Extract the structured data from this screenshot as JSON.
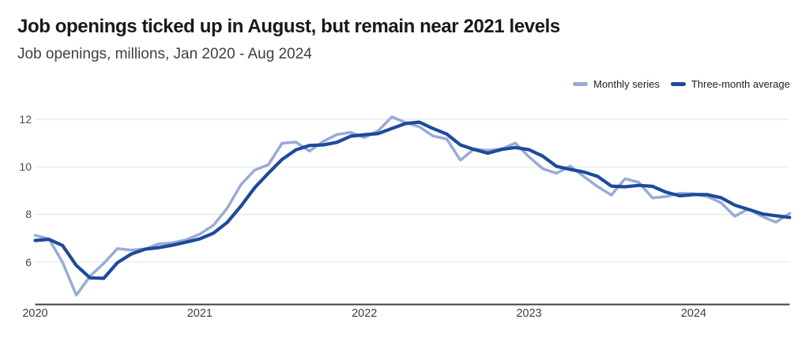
{
  "header": {
    "title": "Job openings ticked up in August, but remain near 2021 levels",
    "subtitle": "Job openings, millions, Jan 2020 - Aug 2024"
  },
  "legend": {
    "items": [
      {
        "label": "Monthly series",
        "color": "#97abd5"
      },
      {
        "label": "Three-month average",
        "color": "#1d4a9c"
      }
    ]
  },
  "chart_data": {
    "type": "line",
    "title": "Job openings ticked up in August, but remain near 2021 levels",
    "subtitle": "Job openings, millions, Jan 2020 - Aug 2024",
    "x_unit": "month",
    "x_range": "Jan 2020 - Aug 2024",
    "x_tick_labels": [
      "2020",
      "2021",
      "2022",
      "2023",
      "2024"
    ],
    "y_ticks": [
      6,
      8,
      10,
      12
    ],
    "ylim": [
      4.2,
      12.6
    ],
    "grid": "horizontal",
    "legend_position": "top-right",
    "series": [
      {
        "name": "Monthly series",
        "color": "#97abd5",
        "values": [
          7.12,
          6.97,
          5.98,
          4.6,
          5.4,
          5.94,
          6.56,
          6.5,
          6.54,
          6.76,
          6.8,
          6.93,
          7.17,
          7.54,
          8.26,
          9.25,
          9.86,
          10.09,
          10.99,
          11.04,
          10.66,
          11.07,
          11.36,
          11.45,
          11.23,
          11.51,
          12.1,
          11.86,
          11.68,
          11.3,
          11.17,
          10.28,
          10.75,
          10.69,
          10.75,
          11.0,
          10.42,
          9.92,
          9.73,
          10.03,
          9.59,
          9.17,
          8.81,
          9.5,
          9.35,
          8.69,
          8.75,
          8.89,
          8.86,
          8.75,
          8.49,
          7.92,
          8.23,
          7.91,
          7.67,
          8.04
        ]
      },
      {
        "name": "Three-month average",
        "color": "#1d4a9c",
        "values": [
          6.9,
          6.95,
          6.69,
          5.85,
          5.33,
          5.31,
          5.97,
          6.33,
          6.53,
          6.6,
          6.7,
          6.83,
          6.97,
          7.21,
          7.66,
          8.35,
          9.12,
          9.73,
          10.31,
          10.71,
          10.9,
          10.92,
          11.03,
          11.29,
          11.35,
          11.4,
          11.61,
          11.82,
          11.88,
          11.61,
          11.38,
          10.92,
          10.73,
          10.57,
          10.73,
          10.81,
          10.72,
          10.45,
          10.02,
          9.89,
          9.78,
          9.6,
          9.19,
          9.16,
          9.22,
          9.18,
          8.93,
          8.78,
          8.83,
          8.83,
          8.7,
          8.39,
          8.21,
          8.02,
          7.94,
          7.87
        ]
      }
    ]
  },
  "colors": {
    "gridline": "#e2e2e2",
    "axis_line": "#3f3f3f",
    "title_text": "#191919",
    "subtitle_text": "#3f3f3f",
    "tick_text": "#454545",
    "background": "#ffffff"
  }
}
